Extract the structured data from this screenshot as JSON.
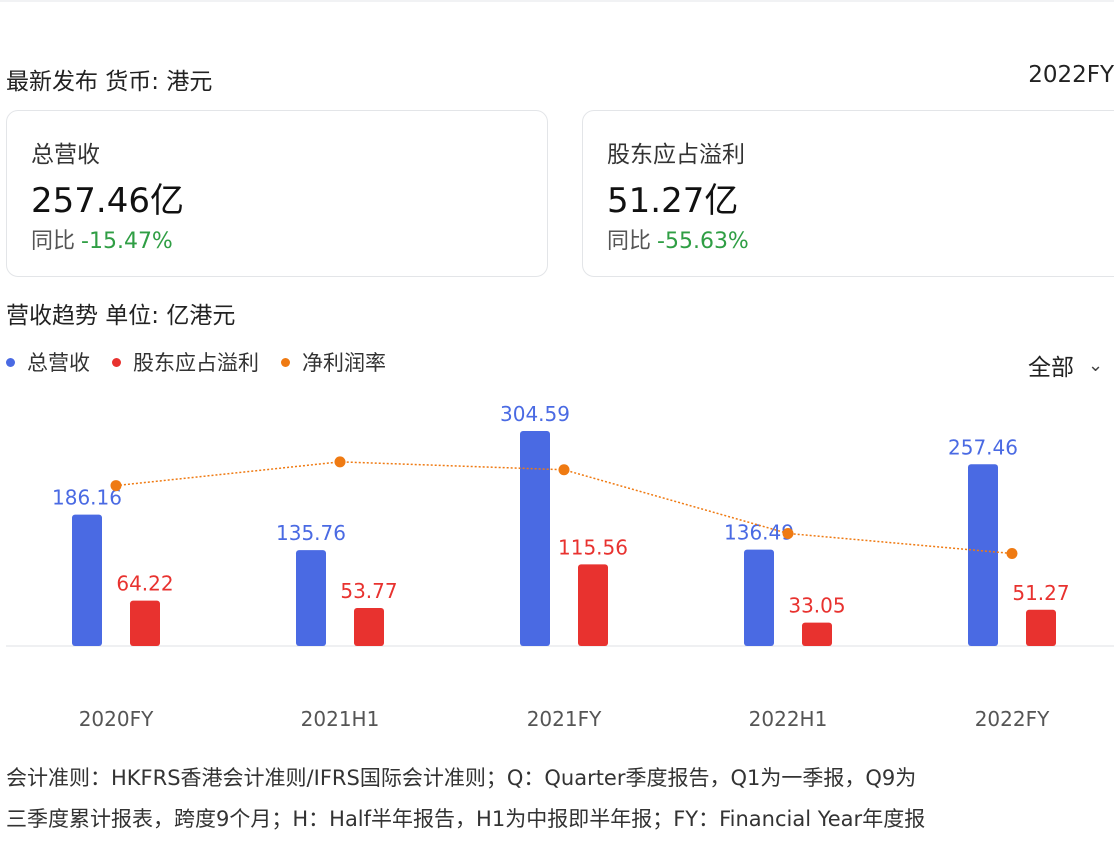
{
  "header": {
    "title": "最新发布  货币: 港元",
    "period": "2022FY"
  },
  "cards": [
    {
      "label": "总营收",
      "value": "257.46亿",
      "yoy_label": "同比",
      "yoy_value": "-15.47%"
    },
    {
      "label": "股东应占溢利",
      "value": "51.27亿",
      "yoy_label": "同比",
      "yoy_value": "-55.63%"
    }
  ],
  "trend": {
    "title": "营收趋势  单位: 亿港元",
    "filter": {
      "label": "全部",
      "icon": "chevron-down-icon"
    }
  },
  "colors": {
    "revenue": "#4a6ae3",
    "profit": "#e8322f",
    "margin": "#ef7a12",
    "positive": "#2f9e44"
  },
  "chart_data": {
    "type": "bar",
    "categories": [
      "2020FY",
      "2021H1",
      "2021FY",
      "2022H1",
      "2022FY"
    ],
    "series": [
      {
        "name": "总营收",
        "type": "bar",
        "values": [
          186.16,
          135.76,
          304.59,
          136.49,
          257.46
        ]
      },
      {
        "name": "股东应占溢利",
        "type": "bar",
        "values": [
          64.22,
          53.77,
          115.56,
          33.05,
          51.27
        ]
      },
      {
        "name": "净利润率",
        "type": "line",
        "values": [
          0.345,
          0.396,
          0.379,
          0.242,
          0.199
        ]
      }
    ],
    "ylim": [
      0,
      330
    ],
    "grid": false,
    "legend": "top-left"
  },
  "footnote": {
    "line1": "会计准则：HKFRS香港会计准则/IFRS国际会计准则；Q：Quarter季度报告，Q1为一季报，Q9为",
    "line2": "三季度累计报表，跨度9个月；H：Half半年报告，H1为中报即半年报；FY：Financial Year年度报"
  }
}
